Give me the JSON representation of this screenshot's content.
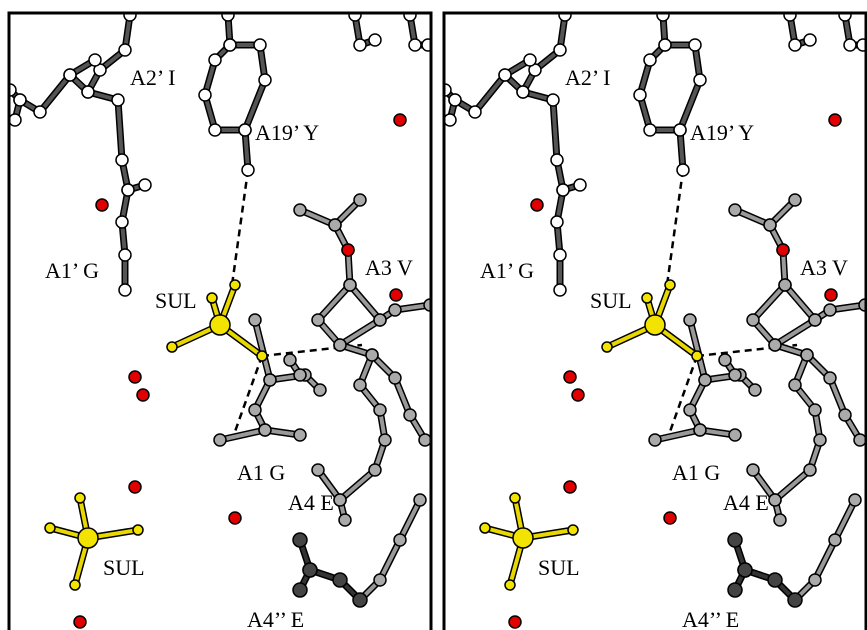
{
  "panels": [
    {
      "labels": [
        "A2’ I",
        "A19’ Y",
        "A1’ G",
        "SUL",
        "A3 V",
        "A1 G",
        "A4 E",
        "SUL",
        "A4’’ E"
      ]
    },
    {
      "labels": [
        "A2’ I",
        "A19’ Y",
        "A1’ G",
        "SUL",
        "A3 V",
        "A1 G",
        "A4 E",
        "SUL",
        "A4’’ E"
      ]
    }
  ]
}
